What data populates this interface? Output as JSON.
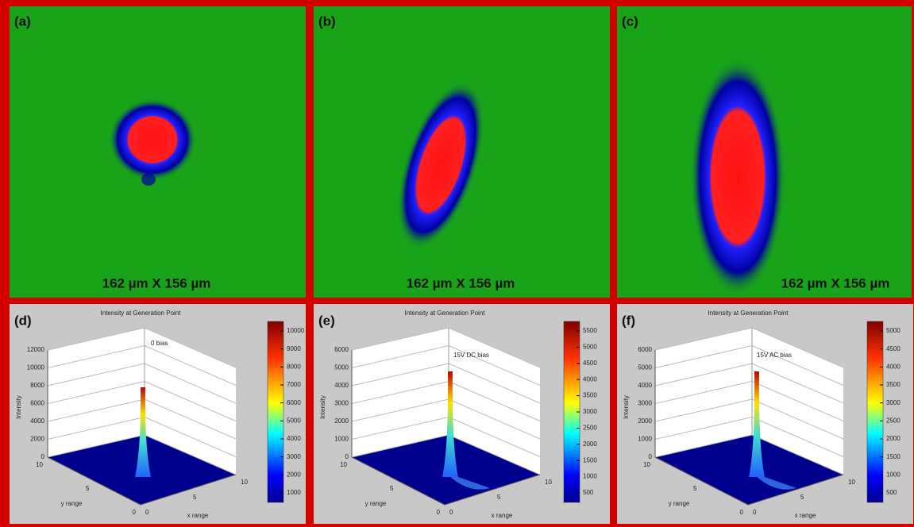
{
  "top_panels": [
    {
      "label": "(a)",
      "caption": "162 µm X 156 µm"
    },
    {
      "label": "(b)",
      "caption": "162 µm X 156 µm"
    },
    {
      "label": "(c)",
      "caption": "162 µm X 156 µm"
    }
  ],
  "bottom_panels": [
    {
      "label": "(d)",
      "title": "Intensity at Generation Point",
      "annotation": "0 bias",
      "z_label": "Intensity",
      "x_label": "x range",
      "y_label": "y range",
      "z_ticks": [
        0,
        2000,
        4000,
        6000,
        8000,
        10000,
        12000
      ],
      "x_ticks": [
        0,
        5,
        10
      ],
      "y_ticks": [
        0,
        5,
        10
      ],
      "colorbar_ticks": [
        1000,
        2000,
        3000,
        4000,
        5000,
        6000,
        7000,
        8000,
        9000,
        10000
      ]
    },
    {
      "label": "(e)",
      "title": "Intensity at Generation Point",
      "annotation": "15V DC bias",
      "z_label": "Intensity",
      "x_label": "x range",
      "y_label": "y range",
      "z_ticks": [
        0,
        1000,
        2000,
        3000,
        4000,
        5000,
        6000
      ],
      "x_ticks": [
        0,
        5,
        10
      ],
      "y_ticks": [
        0,
        5,
        10
      ],
      "colorbar_ticks": [
        500,
        1000,
        1500,
        2000,
        2500,
        3000,
        3500,
        4000,
        4500,
        5000,
        5500
      ]
    },
    {
      "label": "(f)",
      "title": "Intensity at Generation Point",
      "annotation": "15V AC bias",
      "z_label": "Intensity",
      "x_label": "x range",
      "y_label": "y range",
      "z_ticks": [
        0,
        1000,
        2000,
        3000,
        4000,
        5000,
        6000
      ],
      "x_ticks": [
        0,
        5,
        10
      ],
      "y_ticks": [
        0,
        5,
        10
      ],
      "colorbar_ticks": [
        500,
        1000,
        1500,
        2000,
        2500,
        3000,
        3500,
        4000,
        4500,
        5000
      ]
    }
  ]
}
